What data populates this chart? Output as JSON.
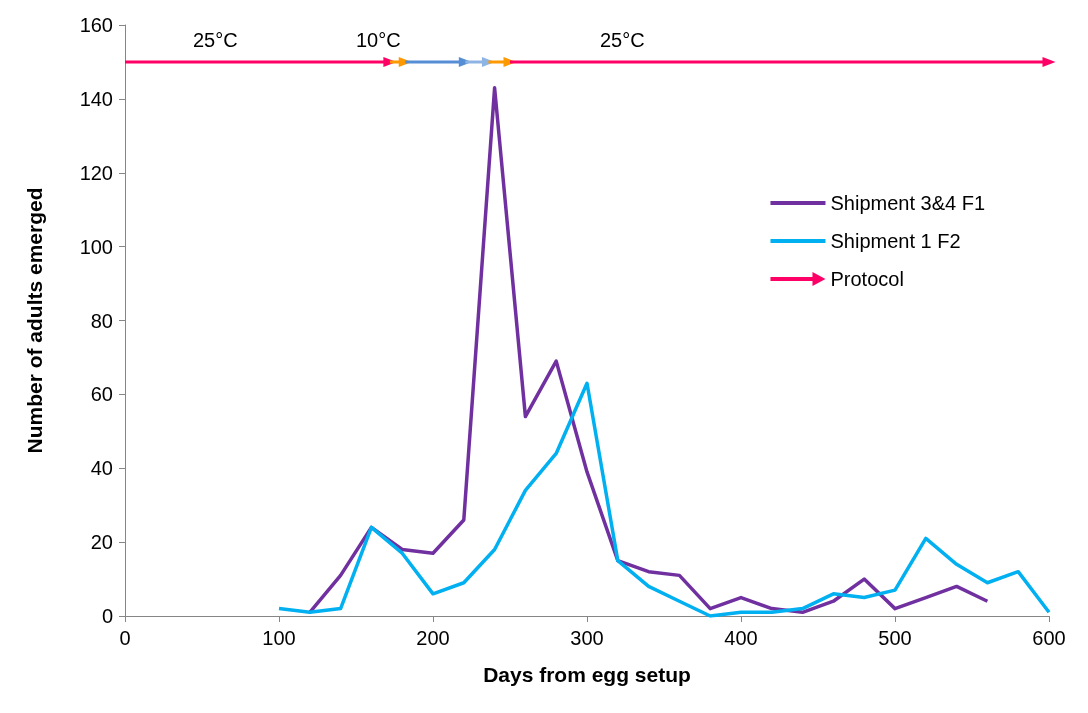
{
  "chart_data": {
    "type": "line",
    "xlabel": "Days from egg setup",
    "ylabel": "Number of adults emerged",
    "xlim": [
      0,
      600
    ],
    "xticks": [
      0,
      100,
      200,
      300,
      400,
      500,
      600
    ],
    "ylim": [
      0,
      160
    ],
    "yticks": [
      0,
      20,
      40,
      60,
      80,
      100,
      120,
      140,
      160
    ],
    "grid": false,
    "legend": "right",
    "marker": "none",
    "series": [
      {
        "name": "Shipment 3&4 F1",
        "color": "#7030a0",
        "x": [
          120,
          140,
          160,
          180,
          200,
          220,
          240,
          260,
          280,
          300,
          320,
          340,
          360,
          380,
          400,
          420,
          440,
          460,
          480,
          500,
          520,
          540,
          560
        ],
        "values": [
          1,
          11,
          24,
          18,
          17,
          26,
          143,
          54,
          69,
          39,
          15,
          12,
          11,
          2,
          5,
          2,
          1,
          4,
          10,
          2,
          5,
          8,
          4
        ]
      },
      {
        "name": "Shipment 1 F2",
        "color": "#00b0f0",
        "x": [
          100,
          120,
          140,
          160,
          180,
          200,
          220,
          240,
          260,
          280,
          300,
          320,
          340,
          360,
          380,
          400,
          420,
          440,
          460,
          480,
          500,
          520,
          540,
          560,
          580,
          600
        ],
        "values": [
          2,
          1,
          2,
          24,
          17,
          6,
          9,
          18,
          34,
          44,
          63,
          15,
          8,
          4,
          0,
          1,
          1,
          2,
          6,
          5,
          7,
          21,
          14,
          9,
          12,
          1
        ]
      },
      {
        "name": "Protocol",
        "color": "#ff0066",
        "marker": "triangle",
        "x": [
          0,
          172
        ],
        "values": [
          150,
          150
        ]
      },
      {
        "color": "#ff9900",
        "marker": "triangle",
        "x": [
          172,
          182
        ],
        "values": [
          150,
          150
        ]
      },
      {
        "color": "#558ed5",
        "marker": "triangle",
        "x": [
          182,
          221
        ],
        "values": [
          150,
          150
        ]
      },
      {
        "color": "#8eb4e3",
        "marker": "triangle",
        "x": [
          221,
          236
        ],
        "values": [
          150,
          150
        ]
      },
      {
        "color": "#ff9900",
        "marker": "triangle",
        "x": [
          236,
          250
        ],
        "values": [
          150,
          150
        ]
      },
      {
        "color": "#ff0066",
        "marker": "triangle",
        "x": [
          250,
          600
        ],
        "values": [
          150,
          150
        ]
      }
    ],
    "annotations": [
      "25°C",
      "10°C",
      "25°C"
    ]
  }
}
